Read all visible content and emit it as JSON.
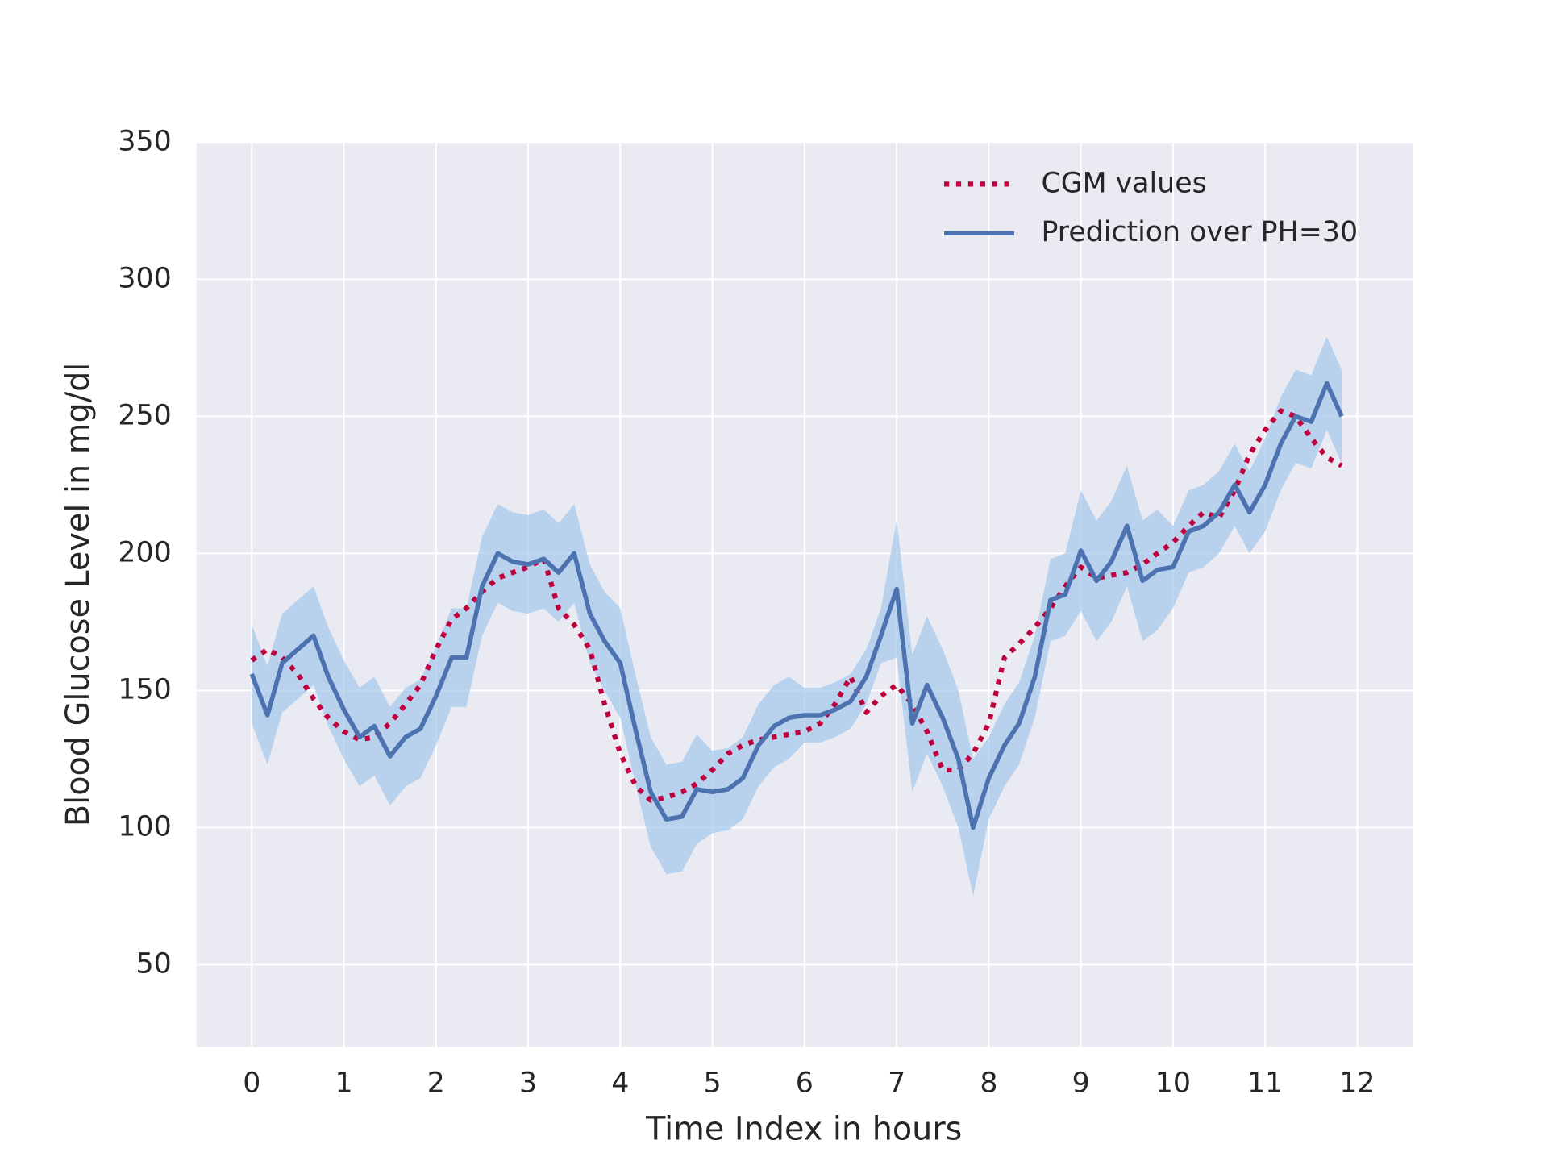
{
  "chart_data": {
    "type": "line",
    "xlabel": "Time Index in hours",
    "ylabel": "Blood Glucose Level in mg/dl",
    "xlim": [
      -0.6,
      12.6
    ],
    "ylim": [
      20,
      350
    ],
    "xticks": [
      0,
      1,
      2,
      3,
      4,
      5,
      6,
      7,
      8,
      9,
      10,
      11,
      12
    ],
    "yticks": [
      50,
      100,
      150,
      200,
      250,
      300,
      350
    ],
    "grid": true,
    "legend": "upper right",
    "x": [
      0,
      0.17,
      0.33,
      0.5,
      0.67,
      0.83,
      1,
      1.17,
      1.33,
      1.5,
      1.67,
      1.83,
      2,
      2.17,
      2.33,
      2.5,
      2.67,
      2.83,
      3,
      3.17,
      3.33,
      3.5,
      3.67,
      3.83,
      4,
      4.17,
      4.33,
      4.5,
      4.67,
      4.83,
      5,
      5.17,
      5.33,
      5.5,
      5.67,
      5.83,
      6,
      6.17,
      6.33,
      6.5,
      6.67,
      6.83,
      7,
      7.17,
      7.33,
      7.5,
      7.67,
      7.83,
      8,
      8.17,
      8.33,
      8.5,
      8.67,
      8.83,
      9,
      9.17,
      9.33,
      9.5,
      9.67,
      9.83,
      10,
      10.17,
      10.33,
      10.5,
      10.67,
      10.83,
      11,
      11.17,
      11.33,
      11.5,
      11.67,
      11.83
    ],
    "series": [
      {
        "name": "CGM values",
        "color": "#c0003c",
        "style": "dotted",
        "values": [
          161,
          165,
          162,
          156,
          147,
          140,
          135,
          132,
          133,
          138,
          145,
          152,
          165,
          176,
          180,
          186,
          191,
          193,
          195,
          198,
          180,
          174,
          165,
          145,
          127,
          115,
          110,
          111,
          113,
          116,
          121,
          127,
          130,
          132,
          133,
          134,
          135,
          138,
          145,
          155,
          142,
          148,
          152,
          145,
          135,
          121,
          121,
          127,
          138,
          162,
          167,
          173,
          180,
          188,
          195,
          191,
          192,
          193,
          196,
          200,
          204,
          210,
          215,
          213,
          223,
          236,
          245,
          252,
          250,
          242,
          235,
          232
        ]
      },
      {
        "name": "Prediction over PH=30",
        "color": "#4c72b0",
        "style": "solid",
        "values": [
          156,
          141,
          160,
          165,
          170,
          155,
          143,
          133,
          137,
          126,
          133,
          136,
          148,
          162,
          162,
          188,
          200,
          197,
          196,
          198,
          193,
          200,
          178,
          168,
          160,
          135,
          113,
          103,
          104,
          114,
          113,
          114,
          118,
          130,
          137,
          140,
          141,
          141,
          143,
          146,
          155,
          170,
          187,
          138,
          152,
          140,
          125,
          100,
          118,
          130,
          138,
          155,
          183,
          185,
          201,
          190,
          197,
          210,
          190,
          194,
          195,
          208,
          210,
          215,
          225,
          215,
          225,
          240,
          250,
          248,
          262,
          250
        ]
      }
    ],
    "band": {
      "color": "#a3c8ec",
      "upper": [
        174,
        159,
        178,
        183,
        188,
        173,
        161,
        151,
        155,
        144,
        151,
        154,
        166,
        180,
        180,
        206,
        218,
        215,
        214,
        216,
        211,
        218,
        196,
        186,
        180,
        155,
        133,
        123,
        124,
        134,
        128,
        129,
        133,
        145,
        152,
        155,
        151,
        151,
        153,
        156,
        165,
        180,
        212,
        163,
        177,
        165,
        150,
        125,
        133,
        145,
        153,
        170,
        198,
        200,
        223,
        212,
        219,
        232,
        212,
        216,
        210,
        223,
        225,
        230,
        240,
        230,
        242,
        257,
        267,
        265,
        279,
        267
      ],
      "lower": [
        138,
        123,
        142,
        147,
        152,
        137,
        125,
        115,
        119,
        108,
        115,
        118,
        130,
        144,
        144,
        170,
        182,
        179,
        178,
        180,
        175,
        182,
        160,
        150,
        140,
        115,
        93,
        83,
        84,
        94,
        98,
        99,
        103,
        115,
        122,
        125,
        131,
        131,
        133,
        136,
        145,
        160,
        162,
        113,
        127,
        115,
        100,
        75,
        103,
        115,
        123,
        140,
        168,
        170,
        179,
        168,
        175,
        188,
        168,
        172,
        180,
        193,
        195,
        200,
        210,
        200,
        208,
        223,
        233,
        231,
        245,
        233
      ]
    }
  }
}
